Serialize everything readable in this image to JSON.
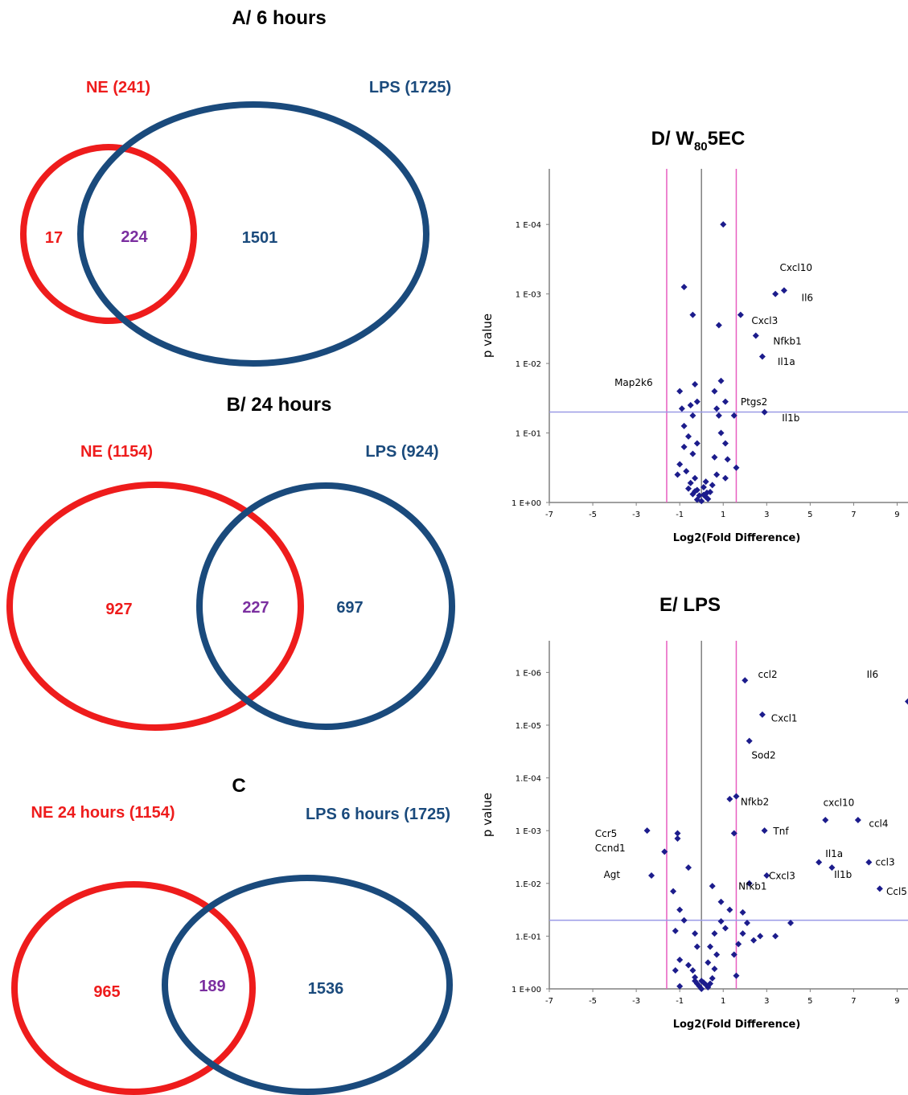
{
  "colors": {
    "ne": "#ee1c1c",
    "lps": "#1a4a7c",
    "overlap": "#7b2fa0",
    "points": "#1c1c8c",
    "fold_line": "#e85fc0",
    "p_line": "#9a9ae6",
    "axis": "#808080"
  },
  "venn_a": {
    "title": "A/ 6 hours",
    "left_label": "NE (241)",
    "right_label": "LPS (1725)",
    "left_only": "17",
    "overlap": "224",
    "right_only": "1501"
  },
  "venn_b": {
    "title": "B/ 24 hours",
    "left_label": "NE (1154)",
    "right_label": "LPS (924)",
    "left_only": "927",
    "overlap": "227",
    "right_only": "697"
  },
  "venn_c": {
    "title": "C",
    "left_label": "NE 24 hours (1154)",
    "right_label": "LPS 6 hours (1725)",
    "left_only": "965",
    "overlap": "189",
    "right_only": "1536"
  },
  "chart_data": [
    {
      "type": "scatter",
      "title_prefix": "D/ W",
      "title_sub": "80",
      "title_suffix": "5EC",
      "xlabel": "Log2(Fold Difference)",
      "ylabel": "p value",
      "xlim": [
        -7,
        9.5
      ],
      "y_log_p": [
        0,
        4.8
      ],
      "x_ticks": [
        "-7",
        "-5",
        "-3",
        "-1",
        "1",
        "3",
        "5",
        "7",
        "9"
      ],
      "y_ticks": [
        "1 E+00",
        "1 E-01",
        "1 E-02",
        "1 E-03",
        "1 E-04"
      ],
      "fold_threshold": [
        -1.6,
        1.6
      ],
      "p_threshold": 0.05,
      "points": [
        [
          1.0,
          4.0
        ],
        [
          -0.8,
          3.1
        ],
        [
          -0.4,
          2.7
        ],
        [
          0.8,
          2.55
        ],
        [
          1.8,
          2.7
        ],
        [
          3.4,
          3.0
        ],
        [
          3.8,
          3.05
        ],
        [
          2.5,
          2.4
        ],
        [
          2.8,
          2.1
        ],
        [
          -1.0,
          1.6
        ],
        [
          -0.3,
          1.7
        ],
        [
          -0.5,
          1.4
        ],
        [
          -0.2,
          1.45
        ],
        [
          -0.9,
          1.35
        ],
        [
          -0.4,
          1.25
        ],
        [
          0.9,
          1.75
        ],
        [
          0.6,
          1.6
        ],
        [
          1.1,
          1.45
        ],
        [
          0.7,
          1.35
        ],
        [
          0.8,
          1.25
        ],
        [
          1.5,
          1.25
        ],
        [
          2.9,
          1.3
        ],
        [
          -0.8,
          1.1
        ],
        [
          -0.6,
          0.95
        ],
        [
          0.9,
          1.0
        ],
        [
          -0.2,
          0.85
        ],
        [
          -0.8,
          0.8
        ],
        [
          1.1,
          0.85
        ],
        [
          -0.4,
          0.7
        ],
        [
          0.6,
          0.65
        ],
        [
          1.2,
          0.62
        ],
        [
          -1.0,
          0.55
        ],
        [
          -0.7,
          0.45
        ],
        [
          1.6,
          0.5
        ],
        [
          -1.1,
          0.4
        ],
        [
          -0.3,
          0.35
        ],
        [
          0.7,
          0.4
        ],
        [
          1.1,
          0.35
        ],
        [
          -0.5,
          0.28
        ],
        [
          0.2,
          0.3
        ],
        [
          0.5,
          0.25
        ],
        [
          -0.6,
          0.2
        ],
        [
          -0.2,
          0.18
        ],
        [
          0.1,
          0.22
        ],
        [
          0.4,
          0.15
        ],
        [
          -0.4,
          0.12
        ],
        [
          -0.1,
          0.1
        ],
        [
          0.2,
          0.08
        ],
        [
          0.3,
          0.05
        ],
        [
          -0.2,
          0.04
        ],
        [
          0.0,
          0.02
        ],
        [
          0.1,
          0.11
        ],
        [
          -0.3,
          0.16
        ],
        [
          0.25,
          0.14
        ]
      ],
      "labels": [
        {
          "text": "Cxcl10",
          "x": 3.6,
          "y": 3.33
        },
        {
          "text": "Il6",
          "x": 4.6,
          "y": 2.9
        },
        {
          "text": "Cxcl3",
          "x": 2.3,
          "y": 2.57
        },
        {
          "text": "Nfkb1",
          "x": 3.3,
          "y": 2.27
        },
        {
          "text": "Il1a",
          "x": 3.5,
          "y": 1.98
        },
        {
          "text": "Map2k6",
          "x": -4.0,
          "y": 1.68
        },
        {
          "text": "Ptgs2",
          "x": 1.8,
          "y": 1.4
        },
        {
          "text": "Il1b",
          "x": 3.7,
          "y": 1.17
        }
      ]
    },
    {
      "type": "scatter",
      "title": "E/ LPS",
      "xlabel": "Log2(Fold Difference)",
      "ylabel": "p value",
      "xlim": [
        -7,
        9.5
      ],
      "y_log_p": [
        0,
        6.6
      ],
      "x_ticks": [
        "-7",
        "-5",
        "-3",
        "-1",
        "1",
        "3",
        "5",
        "7",
        "9"
      ],
      "y_ticks": [
        "1 E+00",
        "1.E-01",
        "1.E-02",
        "1 E-03",
        "1.E-04",
        "1.E-05",
        "1 E-06"
      ],
      "fold_threshold": [
        -1.6,
        1.6
      ],
      "p_threshold": 0.05,
      "points": [
        [
          2.0,
          5.85
        ],
        [
          9.5,
          5.45
        ],
        [
          2.8,
          5.2
        ],
        [
          2.2,
          4.7
        ],
        [
          1.3,
          3.6
        ],
        [
          1.6,
          3.65
        ],
        [
          1.5,
          2.95
        ],
        [
          2.9,
          3.0
        ],
        [
          5.7,
          3.2
        ],
        [
          7.2,
          3.2
        ],
        [
          -2.5,
          3.0
        ],
        [
          -1.1,
          2.95
        ],
        [
          -1.1,
          2.85
        ],
        [
          -1.7,
          2.6
        ],
        [
          -0.6,
          2.3
        ],
        [
          -2.3,
          2.15
        ],
        [
          5.4,
          2.4
        ],
        [
          6.0,
          2.3
        ],
        [
          7.7,
          2.4
        ],
        [
          8.2,
          1.9
        ],
        [
          3.0,
          2.15
        ],
        [
          2.2,
          2.0
        ],
        [
          0.5,
          1.95
        ],
        [
          -1.3,
          1.85
        ],
        [
          0.9,
          1.65
        ],
        [
          -1.0,
          1.5
        ],
        [
          1.3,
          1.5
        ],
        [
          1.9,
          1.45
        ],
        [
          -0.8,
          1.3
        ],
        [
          0.9,
          1.28
        ],
        [
          2.1,
          1.25
        ],
        [
          4.1,
          1.25
        ],
        [
          1.1,
          1.15
        ],
        [
          -1.2,
          1.1
        ],
        [
          -0.3,
          1.05
        ],
        [
          0.6,
          1.05
        ],
        [
          1.9,
          1.05
        ],
        [
          3.4,
          1.0
        ],
        [
          2.4,
          0.92
        ],
        [
          1.7,
          0.85
        ],
        [
          -0.2,
          0.8
        ],
        [
          0.4,
          0.8
        ],
        [
          2.7,
          1.0
        ],
        [
          0.7,
          0.65
        ],
        [
          -1.0,
          0.55
        ],
        [
          -0.6,
          0.45
        ],
        [
          0.3,
          0.5
        ],
        [
          1.5,
          0.65
        ],
        [
          -1.2,
          0.35
        ],
        [
          -0.4,
          0.35
        ],
        [
          0.6,
          0.38
        ],
        [
          1.6,
          0.25
        ],
        [
          -0.3,
          0.22
        ],
        [
          0.0,
          0.15
        ],
        [
          0.5,
          0.2
        ],
        [
          -0.2,
          0.1
        ],
        [
          0.2,
          0.08
        ],
        [
          -0.1,
          0.05
        ],
        [
          0.1,
          0.12
        ],
        [
          0.3,
          0.03
        ],
        [
          -0.3,
          0.15
        ],
        [
          0.4,
          0.1
        ],
        [
          0.0,
          0.0
        ],
        [
          -1.0,
          0.05
        ]
      ],
      "labels": [
        {
          "text": "ccl2",
          "x": 2.6,
          "y": 5.9
        },
        {
          "text": "Il6",
          "x": 7.6,
          "y": 5.9
        },
        {
          "text": "Cxcl1",
          "x": 3.2,
          "y": 5.07
        },
        {
          "text": "Sod2",
          "x": 2.3,
          "y": 4.37
        },
        {
          "text": "Nfkb2",
          "x": 1.8,
          "y": 3.48
        },
        {
          "text": "cxcl10",
          "x": 5.6,
          "y": 3.47
        },
        {
          "text": "ccl4",
          "x": 7.7,
          "y": 3.07
        },
        {
          "text": "Tnf",
          "x": 3.3,
          "y": 2.93
        },
        {
          "text": "Ccr5",
          "x": -4.9,
          "y": 2.88
        },
        {
          "text": "Ccnd1",
          "x": -4.9,
          "y": 2.61
        },
        {
          "text": "Il1a",
          "x": 5.7,
          "y": 2.5
        },
        {
          "text": "ccl3",
          "x": 8.0,
          "y": 2.34
        },
        {
          "text": "Agt",
          "x": -4.5,
          "y": 2.1
        },
        {
          "text": "Il1b",
          "x": 6.1,
          "y": 2.1
        },
        {
          "text": "Cxcl3",
          "x": 3.1,
          "y": 2.08
        },
        {
          "text": "Nfkb1",
          "x": 1.7,
          "y": 1.88
        },
        {
          "text": "Ccl5",
          "x": 8.5,
          "y": 1.78
        }
      ]
    }
  ]
}
